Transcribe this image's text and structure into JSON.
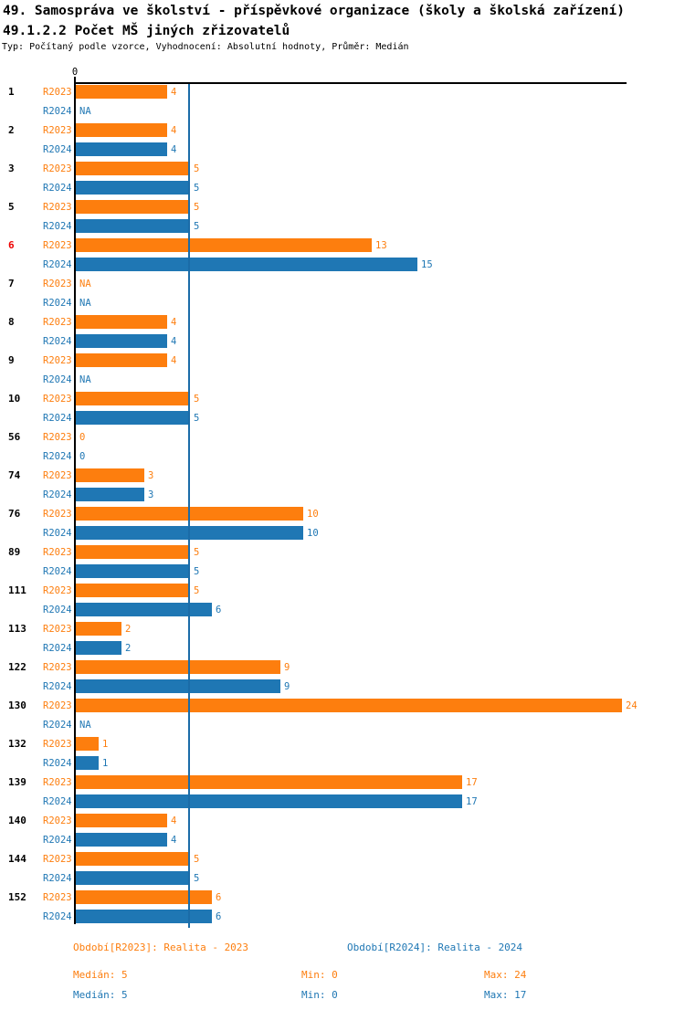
{
  "header": {
    "title": "49. Samospráva ve školství - příspěvkové organizace (školy a školská zařízení)",
    "subtitle": "49.1.2.2 Počet MŠ jiných zřizovatelů",
    "meta": "Typ: Počítaný podle vzorce, Vyhodnocení: Absolutní hodnoty, Průměr: Medián"
  },
  "chart_data": {
    "type": "bar",
    "orientation": "horizontal",
    "title": "49.1.2.2 Počet MŠ jiných zřizovatelů",
    "axis": {
      "zero_label": "0",
      "xlim": [
        0,
        24.3
      ],
      "median_line_value": 5,
      "grid": false
    },
    "na_text": "NA",
    "highlight_color": "#EE0000",
    "median_line_color": "#1B6CA8",
    "series": [
      {
        "name": "R2023",
        "period": "Realita - 2023",
        "color": "#FD7E0E"
      },
      {
        "name": "R2024",
        "period": "Realita - 2024",
        "color": "#1F77B4"
      }
    ],
    "rows": [
      {
        "label": "1",
        "values": [
          4,
          null
        ],
        "highlight": false
      },
      {
        "label": "2",
        "values": [
          4,
          4
        ],
        "highlight": false
      },
      {
        "label": "3",
        "values": [
          5,
          5
        ],
        "highlight": false
      },
      {
        "label": "5",
        "values": [
          5,
          5
        ],
        "highlight": false
      },
      {
        "label": "6",
        "values": [
          13,
          15
        ],
        "highlight": true
      },
      {
        "label": "7",
        "values": [
          null,
          null
        ],
        "highlight": false
      },
      {
        "label": "8",
        "values": [
          4,
          4
        ],
        "highlight": false
      },
      {
        "label": "9",
        "values": [
          4,
          null
        ],
        "highlight": false
      },
      {
        "label": "10",
        "values": [
          5,
          5
        ],
        "highlight": false
      },
      {
        "label": "56",
        "values": [
          0,
          0
        ],
        "highlight": false
      },
      {
        "label": "74",
        "values": [
          3,
          3
        ],
        "highlight": false
      },
      {
        "label": "76",
        "values": [
          10,
          10
        ],
        "highlight": false
      },
      {
        "label": "89",
        "values": [
          5,
          5
        ],
        "highlight": false
      },
      {
        "label": "111",
        "values": [
          5,
          6
        ],
        "highlight": false
      },
      {
        "label": "113",
        "values": [
          2,
          2
        ],
        "highlight": false
      },
      {
        "label": "122",
        "values": [
          9,
          9
        ],
        "highlight": false
      },
      {
        "label": "130",
        "values": [
          24,
          null
        ],
        "highlight": false
      },
      {
        "label": "132",
        "values": [
          1,
          1
        ],
        "highlight": false
      },
      {
        "label": "139",
        "values": [
          17,
          17
        ],
        "highlight": false
      },
      {
        "label": "140",
        "values": [
          4,
          4
        ],
        "highlight": false
      },
      {
        "label": "144",
        "values": [
          5,
          5
        ],
        "highlight": false
      },
      {
        "label": "152",
        "values": [
          6,
          6
        ],
        "highlight": false
      }
    ]
  },
  "legend": {
    "r2023_label": "Období[R2023]: Realita - 2023",
    "r2024_label": "Období[R2024]: Realita - 2024"
  },
  "stats": {
    "r2023": {
      "median": "Medián: 5",
      "min": "Min: 0",
      "max": "Max: 24"
    },
    "r2024": {
      "median": "Medián: 5",
      "min": "Min: 0",
      "max": "Max: 17"
    }
  }
}
